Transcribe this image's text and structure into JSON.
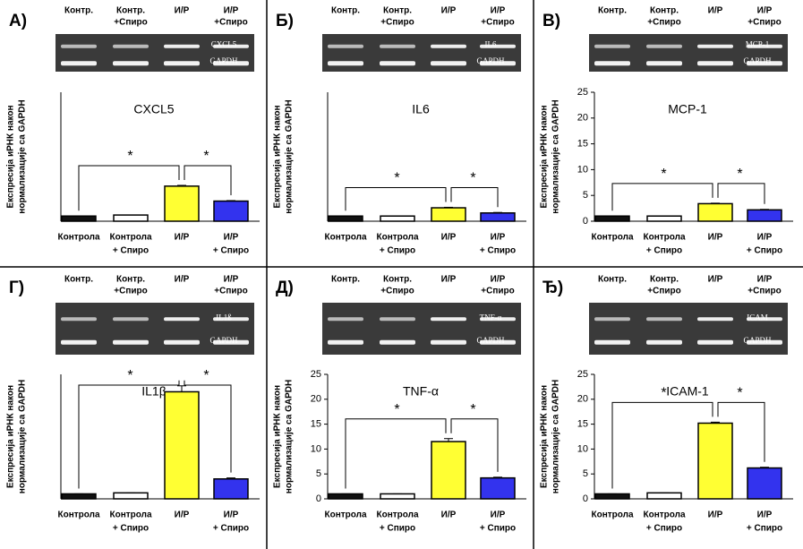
{
  "chart_data": [
    {
      "type": "bar",
      "panel": "А)",
      "title": "CXCL5",
      "gel_lanes": [
        [
          "Контр."
        ],
        [
          "Контр.",
          "+Спиро"
        ],
        [
          "И/Р"
        ],
        [
          "И/Р",
          "+Спиро"
        ]
      ],
      "gel_bands": [
        "CXCL5",
        "GAPDH"
      ],
      "y_label": [
        "Експресија иРНК након",
        "нормализације са GAPDH"
      ],
      "categories": [
        [
          "Контрола"
        ],
        [
          "Контрола",
          "+ Спиро"
        ],
        [
          "И/Р"
        ],
        [
          "И/Р",
          "+ Спиро"
        ]
      ],
      "values": [
        1,
        1.2,
        6.8,
        3.9
      ],
      "errors": [
        0,
        0,
        0.15,
        0.1
      ],
      "colors": [
        "#111111",
        "#ffffff",
        "#ffff33",
        "#3333ee"
      ],
      "ylim": [
        0,
        25
      ],
      "stars": [
        "*",
        "*"
      ]
    },
    {
      "type": "bar",
      "panel": "Б)",
      "title": "IL6",
      "gel_lanes": [
        [
          "Контр."
        ],
        [
          "Контр.",
          "+Спиро"
        ],
        [
          "И/Р"
        ],
        [
          "И/Р",
          "+Спиро"
        ]
      ],
      "gel_bands": [
        "IL6",
        "GAPDH"
      ],
      "y_label": [
        "Експресија иРНК након",
        "нормализације са GAPDH"
      ],
      "categories": [
        [
          "Контрола"
        ],
        [
          "Контрола",
          "+ Спиро"
        ],
        [
          "И/Р"
        ],
        [
          "И/Р",
          "+ Спиро"
        ]
      ],
      "values": [
        1,
        1,
        2.6,
        1.6
      ],
      "errors": [
        0,
        0,
        0.1,
        0.1
      ],
      "colors": [
        "#111111",
        "#ffffff",
        "#ffff33",
        "#3333ee"
      ],
      "ylim": [
        0,
        25
      ],
      "stars": [
        "*",
        "*"
      ]
    },
    {
      "type": "bar",
      "panel": "В)",
      "title": "MCP-1",
      "gel_lanes": [
        [
          "Контр."
        ],
        [
          "Контр.",
          "+Спиро"
        ],
        [
          "И/Р"
        ],
        [
          "И/Р",
          "+Спиро"
        ]
      ],
      "gel_bands": [
        "MCP-1",
        "GAPDH"
      ],
      "y_label": [
        "Експресија иРНК након",
        "нормализације са GAPDH"
      ],
      "categories": [
        [
          "Контрола"
        ],
        [
          "Контрола",
          "+ Спиро"
        ],
        [
          "И/Р"
        ],
        [
          "И/Р",
          "+ Спиро"
        ]
      ],
      "values": [
        1,
        1,
        3.4,
        2.2
      ],
      "errors": [
        0,
        0,
        0.1,
        0.1
      ],
      "colors": [
        "#111111",
        "#ffffff",
        "#ffff33",
        "#3333ee"
      ],
      "ylim": [
        0,
        25
      ],
      "yticks": [
        0,
        5,
        10,
        15,
        20,
        25
      ],
      "stars": [
        "*",
        "*"
      ]
    },
    {
      "type": "bar",
      "panel": "Г)",
      "title": "IL1β",
      "gel_lanes": [
        [
          "Контр."
        ],
        [
          "Контр.",
          "+Спиро"
        ],
        [
          "И/Р"
        ],
        [
          "И/Р",
          "+Спиро"
        ]
      ],
      "gel_bands": [
        "IL1ß",
        "GAPDH"
      ],
      "y_label": [
        "Експресија иРНК након",
        "нормализације са GAPDH"
      ],
      "categories": [
        [
          "Контрола"
        ],
        [
          "Контрола",
          "+ Спиро"
        ],
        [
          "И/Р"
        ],
        [
          "И/Р",
          "+ Спиро"
        ]
      ],
      "values": [
        1,
        1.2,
        21.5,
        4
      ],
      "errors": [
        0,
        0,
        1.2,
        0.2
      ],
      "colors": [
        "#111111",
        "#ffffff",
        "#ffff33",
        "#3333ee"
      ],
      "ylim": [
        0,
        25
      ],
      "stars": [
        "*",
        "*"
      ]
    },
    {
      "type": "bar",
      "panel": "Д)",
      "title": "TNF-α",
      "gel_lanes": [
        [
          "Контр."
        ],
        [
          "Контр.",
          "+Спиро"
        ],
        [
          "И/Р"
        ],
        [
          "И/Р",
          "+Спиро"
        ]
      ],
      "gel_bands": [
        "TNF-α",
        "GAPDH"
      ],
      "y_label": [
        "Експресија иРНК након",
        "нормализације са GAPDH"
      ],
      "categories": [
        [
          "Контрола"
        ],
        [
          "Контрола",
          "+ Спиро"
        ],
        [
          "И/Р"
        ],
        [
          "И/Р",
          "+ Спиро"
        ]
      ],
      "values": [
        1,
        1,
        11.5,
        4.2
      ],
      "errors": [
        0,
        0,
        0.6,
        0.15
      ],
      "colors": [
        "#111111",
        "#ffffff",
        "#ffff33",
        "#3333ee"
      ],
      "ylim": [
        0,
        25
      ],
      "yticks": [
        0,
        5,
        10,
        15,
        20,
        25
      ],
      "stars": [
        "*",
        "*"
      ]
    },
    {
      "type": "bar",
      "panel": "Ђ)",
      "title": "ICAM-1",
      "gel_lanes": [
        [
          "Контр."
        ],
        [
          "Контр.",
          "+Спиро"
        ],
        [
          "И/Р"
        ],
        [
          "И/Р",
          "+Спиро"
        ]
      ],
      "gel_bands": [
        "ICAM",
        "GAPDH"
      ],
      "y_label": [
        "Експресија иРНК након",
        "нормализације са GAPDH"
      ],
      "categories": [
        [
          "Контрола"
        ],
        [
          "Контрола",
          "+ Спиро"
        ],
        [
          "И/Р"
        ],
        [
          "И/Р",
          "+ Спиро"
        ]
      ],
      "values": [
        1,
        1.2,
        15.2,
        6.2
      ],
      "errors": [
        0,
        0,
        0.2,
        0.15
      ],
      "colors": [
        "#111111",
        "#ffffff",
        "#ffff33",
        "#3333ee"
      ],
      "ylim": [
        0,
        25
      ],
      "yticks": [
        0,
        5,
        10,
        15,
        20,
        25
      ],
      "stars": [
        "*",
        "*"
      ]
    }
  ]
}
